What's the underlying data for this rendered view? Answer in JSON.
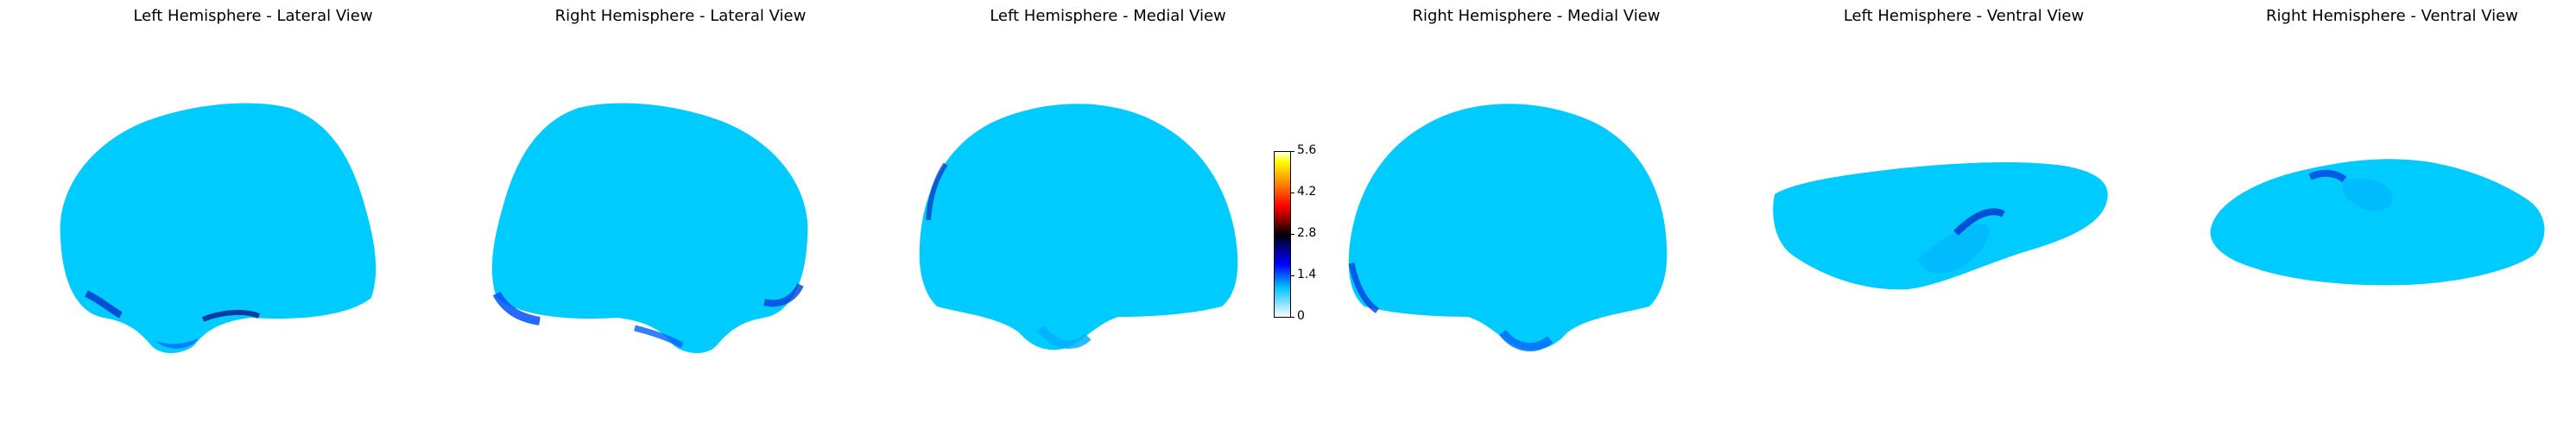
{
  "titles": {
    "lh_lateral": "Left Hemisphere - Lateral View",
    "rh_lateral": "Right Hemisphere - Lateral View",
    "lh_medial": "Left Hemisphere - Medial View",
    "rh_medial": "Right Hemisphere - Medial View",
    "lh_ventral": "Left Hemisphere - Ventral View",
    "rh_ventral": "Right Hemisphere - Ventral View"
  },
  "colorbar": {
    "ticks": [
      "5.6",
      "4.2",
      "2.8",
      "1.4",
      "0"
    ],
    "colormap": [
      "#ffffff",
      "#ffff00",
      "#ff8000",
      "#ff0000",
      "#800000",
      "#000000",
      "#000080",
      "#0000ff",
      "#00c0ff",
      "#ffffff"
    ]
  }
}
